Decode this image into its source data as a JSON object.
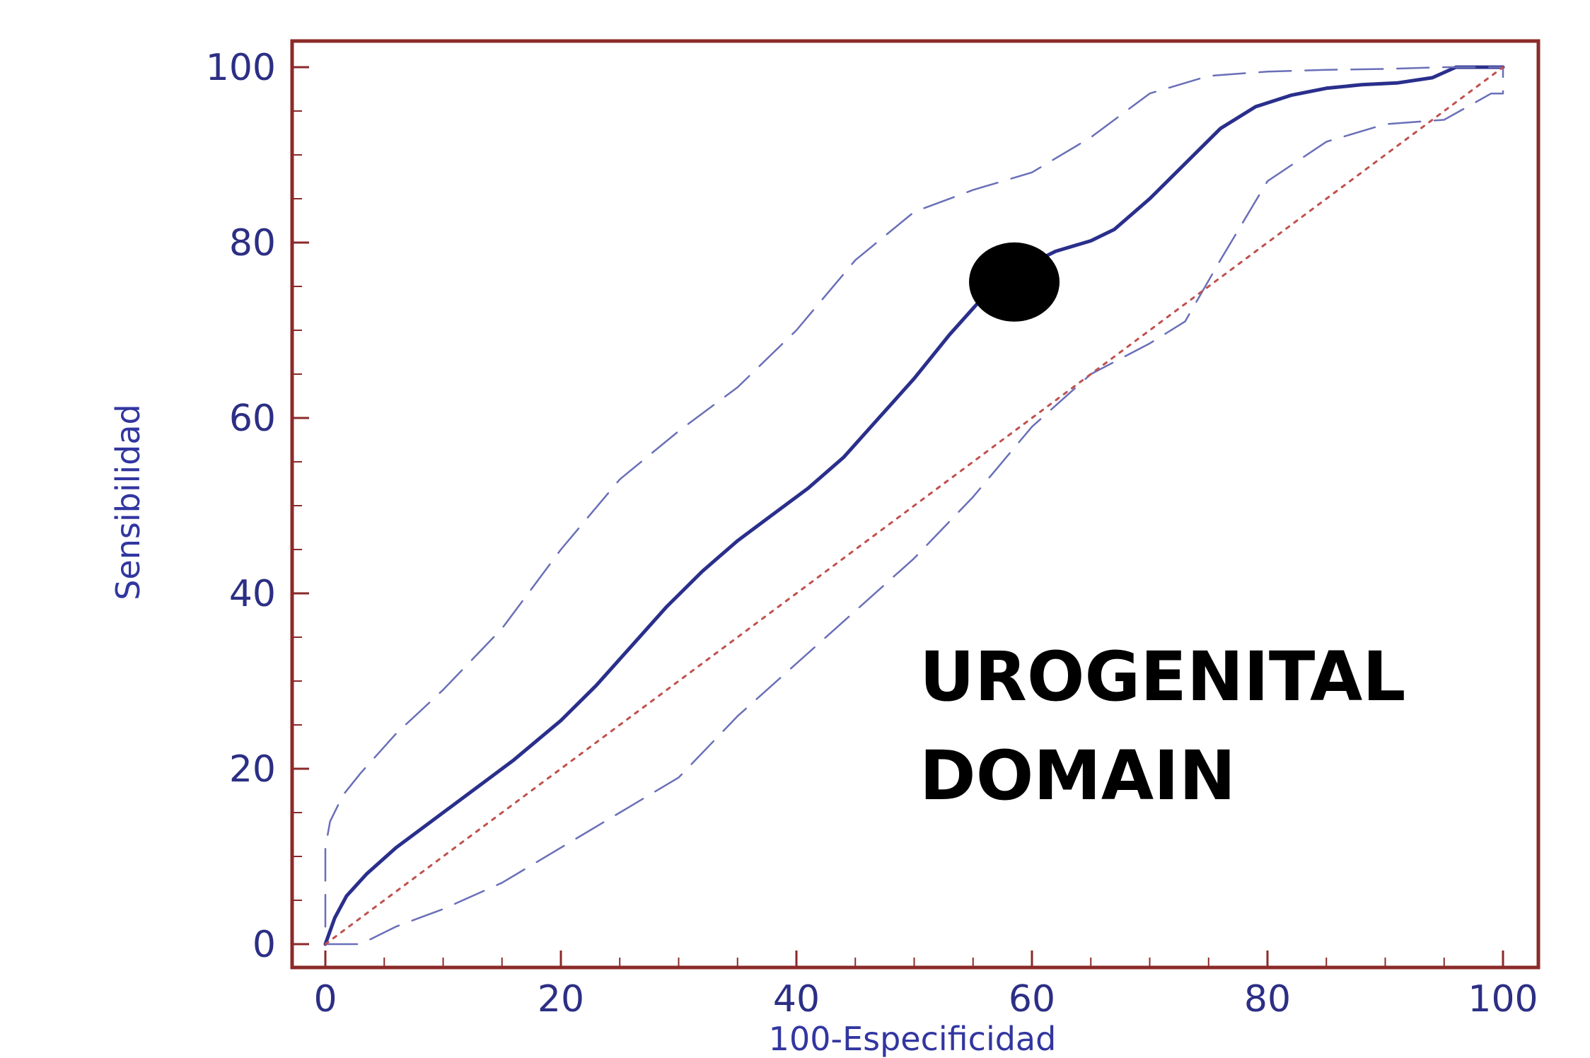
{
  "chart_data": {
    "type": "line",
    "xlabel": "100-Especificidad",
    "ylabel": "Sensibilidad",
    "xlim": [
      0,
      100
    ],
    "ylim": [
      0,
      100
    ],
    "x_ticks": [
      0,
      20,
      40,
      60,
      80,
      100
    ],
    "y_ticks": [
      0,
      20,
      40,
      60,
      80,
      100
    ],
    "grid": false,
    "annotation": [
      "UROGENITAL",
      "DOMAIN"
    ],
    "series": [
      {
        "style": "solid",
        "color": "#2a2f8c",
        "x": [
          0,
          0.8,
          1.8,
          3.5,
          6,
          9,
          12,
          16,
          20,
          23,
          26,
          29,
          32,
          35,
          38,
          41,
          44,
          47,
          50,
          53,
          56,
          59,
          62,
          65,
          67,
          70,
          73,
          76,
          79,
          82,
          85,
          88,
          91,
          94,
          96,
          98,
          100
        ],
        "y": [
          0,
          3,
          5.5,
          8,
          11,
          14,
          17,
          21,
          25.5,
          29.5,
          34,
          38.5,
          42.5,
          46,
          49,
          52,
          55.5,
          60,
          64.5,
          69.5,
          74,
          77,
          79,
          80.2,
          81.5,
          85,
          89,
          93,
          95.5,
          96.8,
          97.6,
          98,
          98.2,
          98.8,
          100,
          100,
          100
        ]
      },
      {
        "style": "dashed",
        "color": "#6a6fb8",
        "x": [
          0,
          0,
          0.4,
          1.5,
          3,
          6,
          10,
          15,
          20,
          25,
          30,
          35,
          40,
          45,
          50,
          55,
          60,
          65,
          70,
          75,
          80,
          85,
          90,
          95,
          97,
          100
        ],
        "y": [
          2,
          11,
          14,
          17,
          19.5,
          24,
          29,
          36,
          45,
          53,
          58.5,
          63.5,
          70,
          78,
          83.5,
          86,
          88,
          92,
          97,
          99,
          99.5,
          99.7,
          99.8,
          100,
          100,
          100
        ]
      },
      {
        "style": "dashed",
        "color": "#6a6fb8",
        "x": [
          0,
          3,
          6,
          10,
          15,
          20,
          25,
          30,
          35,
          40,
          45,
          50,
          55,
          60,
          65,
          70,
          73,
          76,
          80,
          85,
          90,
          95,
          97,
          99,
          100,
          100
        ],
        "y": [
          0,
          0,
          2,
          4,
          7,
          11,
          15,
          19,
          26,
          32,
          38,
          44,
          51,
          59,
          65,
          68.5,
          71,
          78,
          87,
          91.5,
          93.5,
          94,
          95.5,
          97,
          97,
          100
        ]
      },
      {
        "style": "dotted",
        "color": "#c0504d",
        "x": [
          0,
          100
        ],
        "y": [
          0,
          100
        ]
      }
    ],
    "points": [
      {
        "x": 58.5,
        "y": 75.5,
        "color": "#000000"
      }
    ]
  }
}
